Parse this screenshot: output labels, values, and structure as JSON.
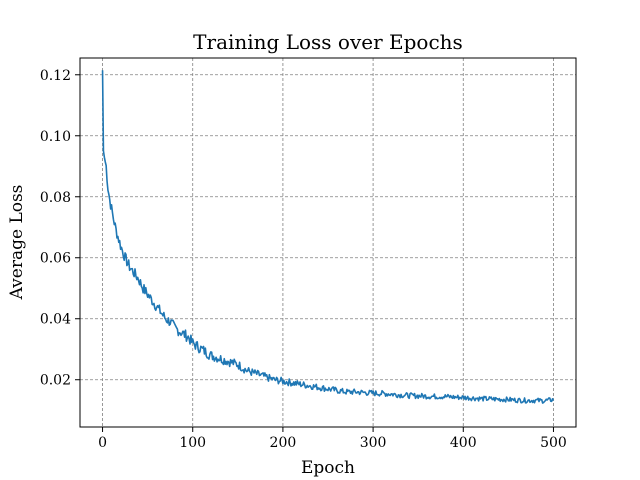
{
  "chart_data": {
    "type": "line",
    "title": "Training Loss over Epochs",
    "xlabel": "Epoch",
    "ylabel": "Average Loss",
    "xlim": [
      -25,
      525
    ],
    "ylim": [
      0.0045,
      0.1255
    ],
    "xticks": [
      0,
      100,
      200,
      300,
      400,
      500
    ],
    "xtick_labels": [
      "0",
      "100",
      "200",
      "300",
      "400",
      "500"
    ],
    "yticks": [
      0.02,
      0.04,
      0.06,
      0.08,
      0.1,
      0.12
    ],
    "ytick_labels": [
      "0.02",
      "0.04",
      "0.06",
      "0.08",
      "0.10",
      "0.12"
    ],
    "grid": true,
    "legend": "none",
    "series": [
      {
        "color": "#1f77b4",
        "x": [
          0,
          1,
          2,
          4,
          6,
          8,
          10,
          12,
          15,
          18,
          20,
          25,
          30,
          35,
          40,
          45,
          50,
          55,
          60,
          65,
          70,
          75,
          80,
          85,
          90,
          95,
          100,
          110,
          120,
          130,
          140,
          150,
          160,
          170,
          180,
          190,
          200,
          210,
          220,
          230,
          240,
          250,
          260,
          270,
          280,
          290,
          300,
          310,
          320,
          330,
          340,
          350,
          360,
          370,
          380,
          390,
          400,
          410,
          420,
          430,
          440,
          450,
          460,
          470,
          480,
          490,
          500
        ],
        "y": [
          0.1215,
          0.095,
          0.093,
          0.09,
          0.083,
          0.079,
          0.076,
          0.073,
          0.069,
          0.066,
          0.064,
          0.06,
          0.057,
          0.055,
          0.053,
          0.05,
          0.048,
          0.046,
          0.044,
          0.042,
          0.04,
          0.039,
          0.037,
          0.036,
          0.035,
          0.034,
          0.032,
          0.03,
          0.028,
          0.027,
          0.026,
          0.025,
          0.023,
          0.022,
          0.021,
          0.02,
          0.0195,
          0.019,
          0.0185,
          0.018,
          0.0175,
          0.017,
          0.0165,
          0.016,
          0.016,
          0.0158,
          0.0156,
          0.0155,
          0.0153,
          0.015,
          0.0148,
          0.0147,
          0.0146,
          0.0145,
          0.0145,
          0.0143,
          0.0142,
          0.014,
          0.0138,
          0.0137,
          0.0136,
          0.0135,
          0.0133,
          0.0132,
          0.0132,
          0.0131,
          0.0135
        ]
      }
    ]
  }
}
